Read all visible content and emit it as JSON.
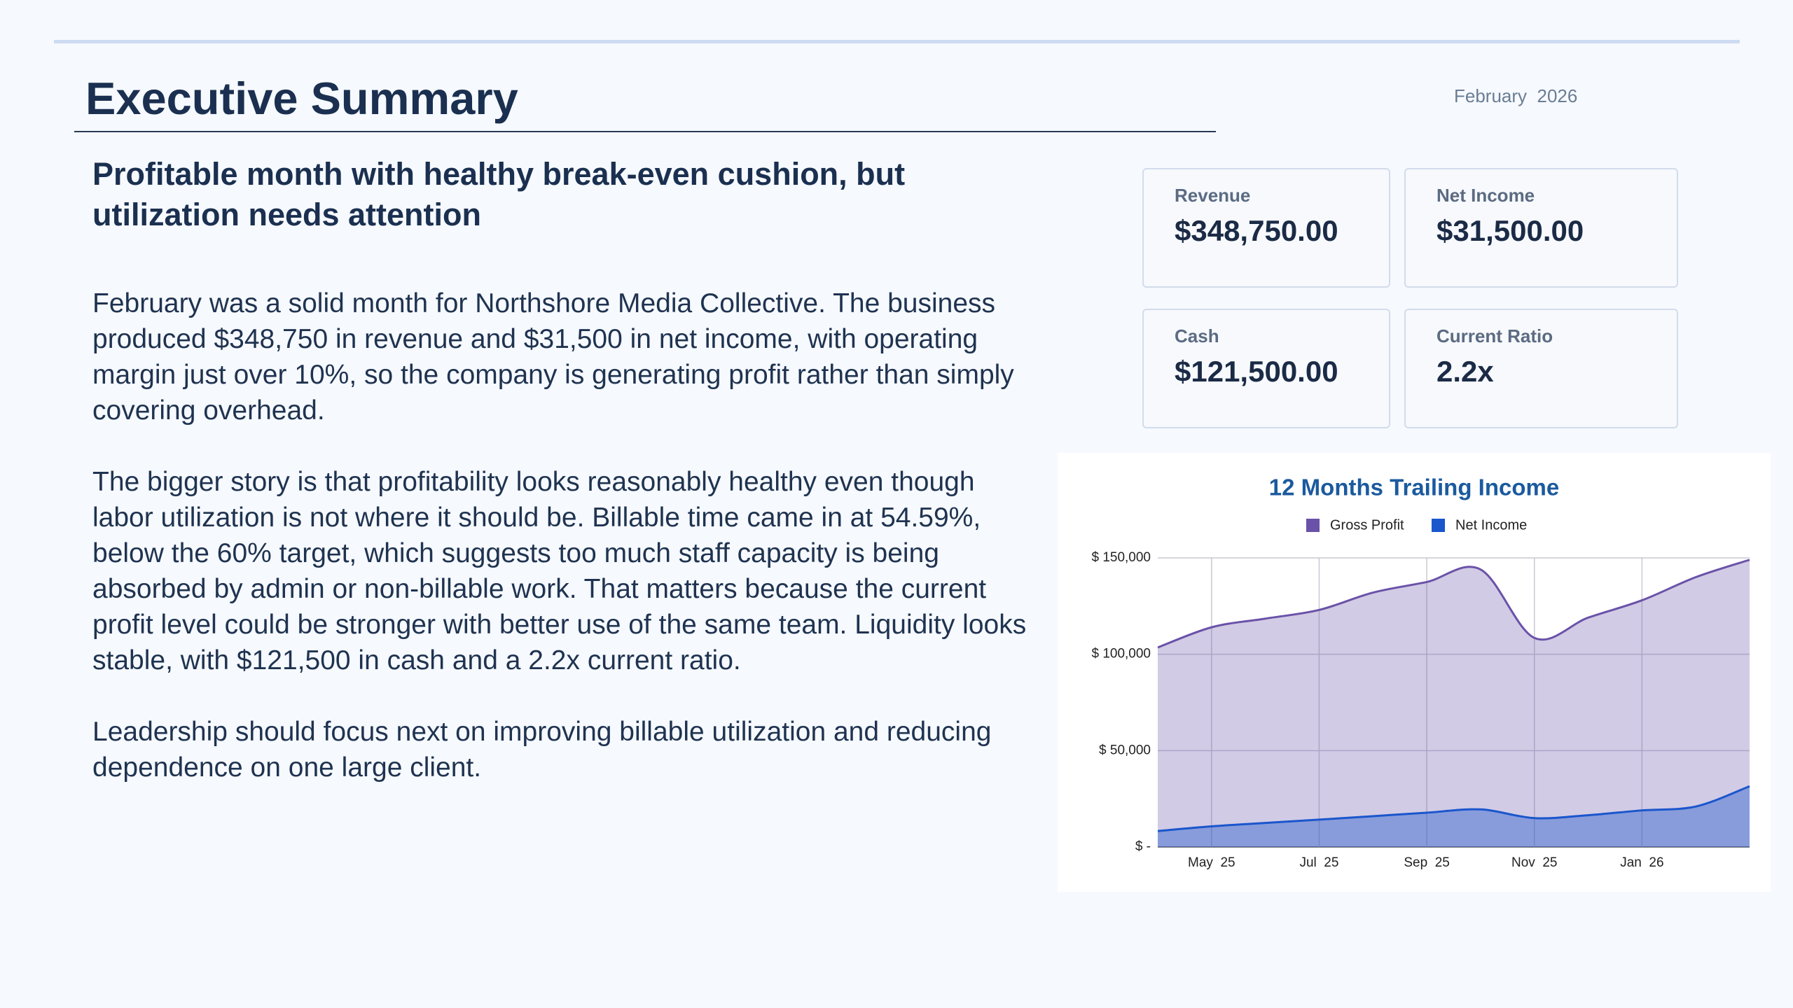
{
  "header": {
    "title": "Executive Summary",
    "date": "February  2026"
  },
  "headline": "Profitable month with healthy break-even cushion, but utilization needs attention",
  "paragraphs": [
    "February was a solid month for Northshore Media Collective. The business produced $348,750 in revenue and $31,500 in net income, with operating margin just over 10%, so the company is generating profit rather than simply covering overhead.",
    "The bigger story is that profitability looks reasonably healthy even though labor utilization is not where it should be. Billable time came in at 54.59%, below the 60% target, which suggests too much staff capacity is being absorbed by admin or non-billable work. That matters because the current profit level could be stronger with better use of the same team. Liquidity looks stable, with $121,500 in cash and a 2.2x current ratio.",
    "Leadership should focus next on improving billable utilization and reducing dependence on one large client."
  ],
  "kpis": [
    {
      "label": "Revenue",
      "value": "$348,750.00"
    },
    {
      "label": "Net Income",
      "value": "$31,500.00"
    },
    {
      "label": "Cash",
      "value": "$121,500.00"
    },
    {
      "label": "Current Ratio",
      "value": "2.2x"
    }
  ],
  "chart_data": {
    "type": "area",
    "title": "12 Months Trailing Income",
    "categories": [
      null,
      "May  25",
      null,
      "Jul  25",
      null,
      "Sep  25",
      null,
      "Nov  25",
      null,
      "Jan  26",
      null,
      null
    ],
    "series": [
      {
        "name": "Gross Profit",
        "color": "#6a52a8",
        "values": [
          103500,
          114000,
          118500,
          123000,
          132000,
          137500,
          144000,
          108500,
          119000,
          128000,
          140000,
          149000
        ]
      },
      {
        "name": "Net Income",
        "color": "#1a56cc",
        "values": [
          8300,
          10700,
          12500,
          14200,
          16000,
          17800,
          19500,
          15000,
          16500,
          19000,
          21000,
          31500
        ]
      }
    ],
    "ylim": [
      0,
      150000
    ],
    "yticks": [
      {
        "value": 0,
        "label": "$ -"
      },
      {
        "value": 50000,
        "label": "$ 50,000"
      },
      {
        "value": 100000,
        "label": "$ 100,000"
      },
      {
        "value": 150000,
        "label": "$ 150,000"
      }
    ],
    "grid": true,
    "legend": "top"
  }
}
